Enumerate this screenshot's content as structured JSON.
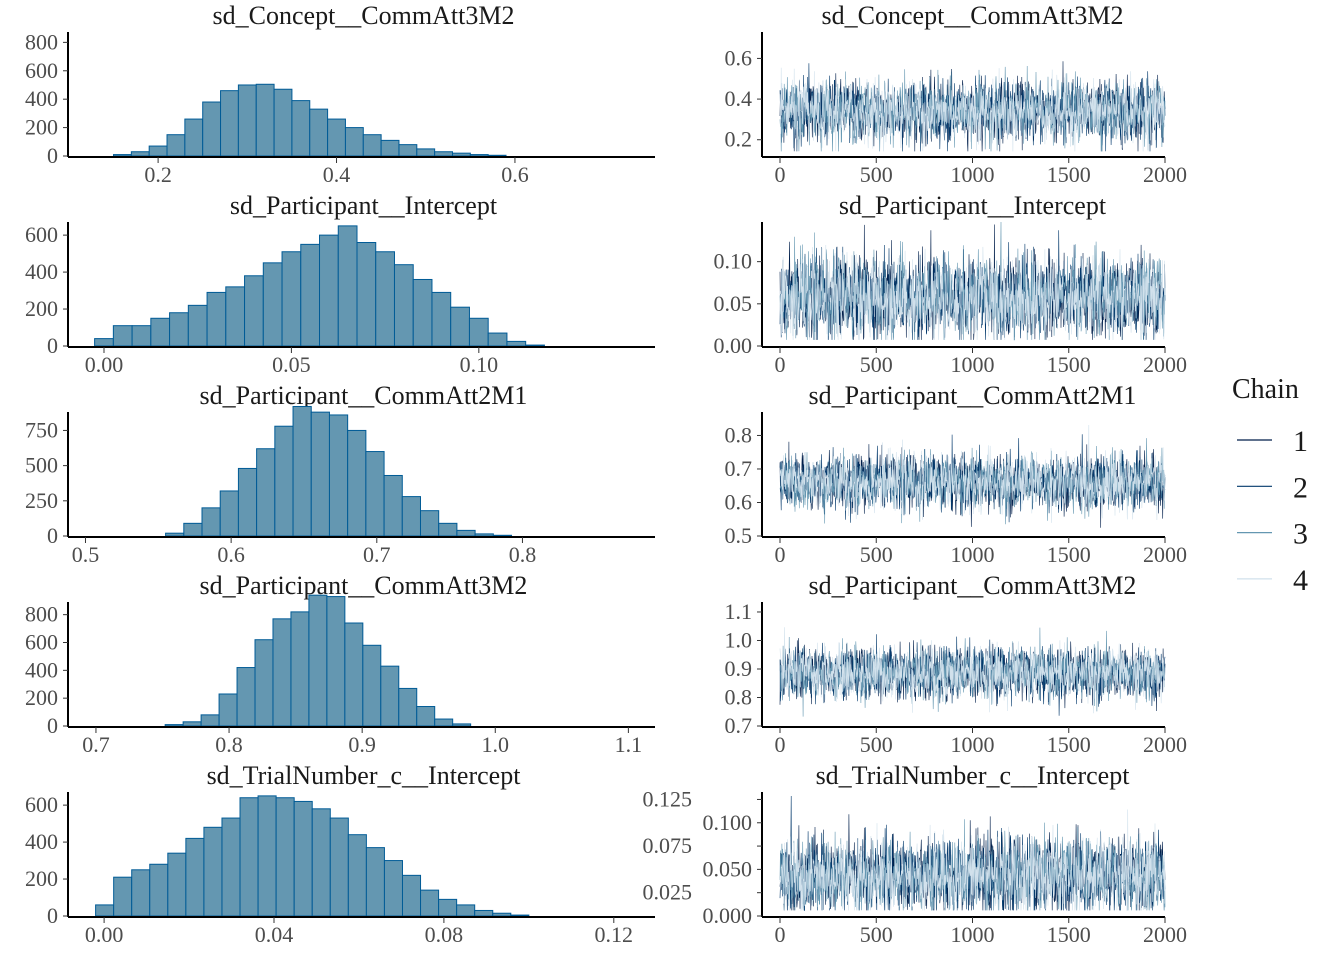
{
  "chart_data": {
    "type": "histogram+trace",
    "legend": {
      "title": "Chain",
      "position": "right",
      "entries": [
        "1",
        "2",
        "3",
        "4"
      ],
      "colors": [
        "#011f4b",
        "#03396c",
        "#6497b1",
        "#d1e1ec"
      ]
    },
    "hist_fill": "#6497b1",
    "hist_outline": "#005b96",
    "trace_x": {
      "ticks": [
        0,
        500,
        1000,
        1500,
        2000
      ],
      "tick_labels": [
        "0",
        "500",
        "1000",
        "1500",
        "2000"
      ],
      "xlim": [
        0,
        2000
      ]
    },
    "panels": [
      {
        "title": "sd_Concept__CommAtt3M2",
        "hist": {
          "xlim": [
            0.099,
            0.757
          ],
          "ylim": [
            0,
            873
          ],
          "bin_start": 0.15,
          "bin_width": 0.02,
          "counts": [
            10,
            30,
            70,
            150,
            260,
            380,
            460,
            500,
            505,
            470,
            390,
            330,
            260,
            200,
            150,
            110,
            80,
            50,
            30,
            20,
            10,
            5
          ],
          "x_ticks": [
            0.2,
            0.4,
            0.6
          ],
          "x_labels": [
            "0.2",
            "0.4",
            "0.6"
          ],
          "y_ticks": [
            0,
            200,
            400,
            600,
            800
          ],
          "y_labels": [
            "0",
            "200",
            "400",
            "600",
            "800"
          ]
        },
        "trace": {
          "ylim": [
            0.12,
            0.73
          ],
          "mean": 0.34,
          "sd": 0.075,
          "y_ticks": [
            0.2,
            0.4,
            0.6
          ],
          "y_labels": [
            "0.2",
            "0.4",
            "0.6"
          ]
        }
      },
      {
        "title": "sd_Participant__Intercept",
        "hist": {
          "xlim": [
            -0.0096,
            0.147
          ],
          "ylim": [
            0,
            671
          ],
          "bin_start": -0.0025,
          "bin_width": 0.005,
          "counts": [
            40,
            110,
            110,
            150,
            180,
            220,
            290,
            320,
            380,
            450,
            510,
            550,
            600,
            650,
            560,
            510,
            440,
            360,
            290,
            210,
            150,
            70,
            25,
            5
          ],
          "x_ticks": [
            0,
            0.05,
            0.1
          ],
          "x_labels": [
            "0.00",
            "0.05",
            "0.10"
          ],
          "y_ticks": [
            0,
            200,
            400,
            600
          ],
          "y_labels": [
            "0",
            "200",
            "400",
            "600"
          ]
        },
        "trace": {
          "ylim": [
            0,
            0.147
          ],
          "mean": 0.058,
          "sd": 0.024,
          "y_ticks": [
            0,
            0.05,
            0.1
          ],
          "y_labels": [
            "0.00",
            "0.05",
            "0.10"
          ]
        }
      },
      {
        "title": "sd_Participant__CommAtt2M1",
        "hist": {
          "xlim": [
            0.488,
            0.891
          ],
          "ylim": [
            0,
            881
          ],
          "bin_start": 0.555,
          "bin_width": 0.0125,
          "counts": [
            20,
            90,
            200,
            320,
            480,
            620,
            780,
            920,
            880,
            860,
            750,
            600,
            430,
            280,
            180,
            90,
            40,
            15,
            5
          ],
          "x_ticks": [
            0.5,
            0.6,
            0.7,
            0.8
          ],
          "x_labels": [
            "0.5",
            "0.6",
            "0.7",
            "0.8"
          ],
          "y_ticks": [
            0,
            250,
            500,
            750
          ],
          "y_labels": [
            "0",
            "250",
            "500",
            "750"
          ]
        },
        "trace": {
          "ylim": [
            0.5,
            0.87
          ],
          "mean": 0.66,
          "sd": 0.04,
          "y_ticks": [
            0.5,
            0.6,
            0.7,
            0.8
          ],
          "y_labels": [
            "0.5",
            "0.6",
            "0.7",
            "0.8"
          ]
        }
      },
      {
        "title": "sd_Participant__CommAtt3M2",
        "hist": {
          "xlim": [
            0.679,
            1.12
          ],
          "ylim": [
            0,
            891
          ],
          "bin_start": 0.752,
          "bin_width": 0.0135,
          "counts": [
            10,
            30,
            80,
            230,
            420,
            620,
            770,
            820,
            940,
            930,
            740,
            580,
            430,
            270,
            140,
            50,
            15
          ],
          "x_ticks": [
            0.7,
            0.8,
            0.9,
            1.0,
            1.1
          ],
          "x_labels": [
            "0.7",
            "0.8",
            "0.9",
            "1.0",
            "1.1"
          ],
          "y_ticks": [
            0,
            200,
            400,
            600,
            800
          ],
          "y_labels": [
            "0",
            "200",
            "400",
            "600",
            "800"
          ]
        },
        "trace": {
          "ylim": [
            0.7,
            1.135
          ],
          "mean": 0.885,
          "sd": 0.045,
          "y_ticks": [
            0.7,
            0.8,
            0.9,
            1.0,
            1.1
          ],
          "y_labels": [
            "0.7",
            "0.8",
            "0.9",
            "1.0",
            "1.1"
          ]
        }
      },
      {
        "title": "sd_TrialNumber_c__Intercept",
        "hist": {
          "xlim": [
            -0.0085,
            0.1297
          ],
          "ylim": [
            0,
            671
          ],
          "bin_start": -0.002,
          "bin_width": 0.00425,
          "counts": [
            60,
            210,
            250,
            280,
            340,
            420,
            480,
            530,
            640,
            650,
            640,
            620,
            580,
            530,
            440,
            370,
            300,
            220,
            140,
            90,
            60,
            30,
            15,
            5
          ],
          "x_ticks": [
            0,
            0.04,
            0.08,
            0.12
          ],
          "x_labels": [
            "0.00",
            "0.04",
            "0.08",
            "0.12"
          ],
          "y_ticks": [
            0,
            200,
            400,
            600
          ],
          "y_labels": [
            "0",
            "200",
            "400",
            "600"
          ]
        },
        "trace": {
          "ylim": [
            0,
            0.133
          ],
          "mean": 0.043,
          "sd": 0.02,
          "y_ticks": [
            0,
            0.025,
            0.05,
            0.075,
            0.1,
            0.125
          ],
          "y_labels": [
            "0.000",
            "0.025",
            "0.050",
            "0.075",
            "0.100",
            "0.125"
          ]
        }
      }
    ]
  }
}
